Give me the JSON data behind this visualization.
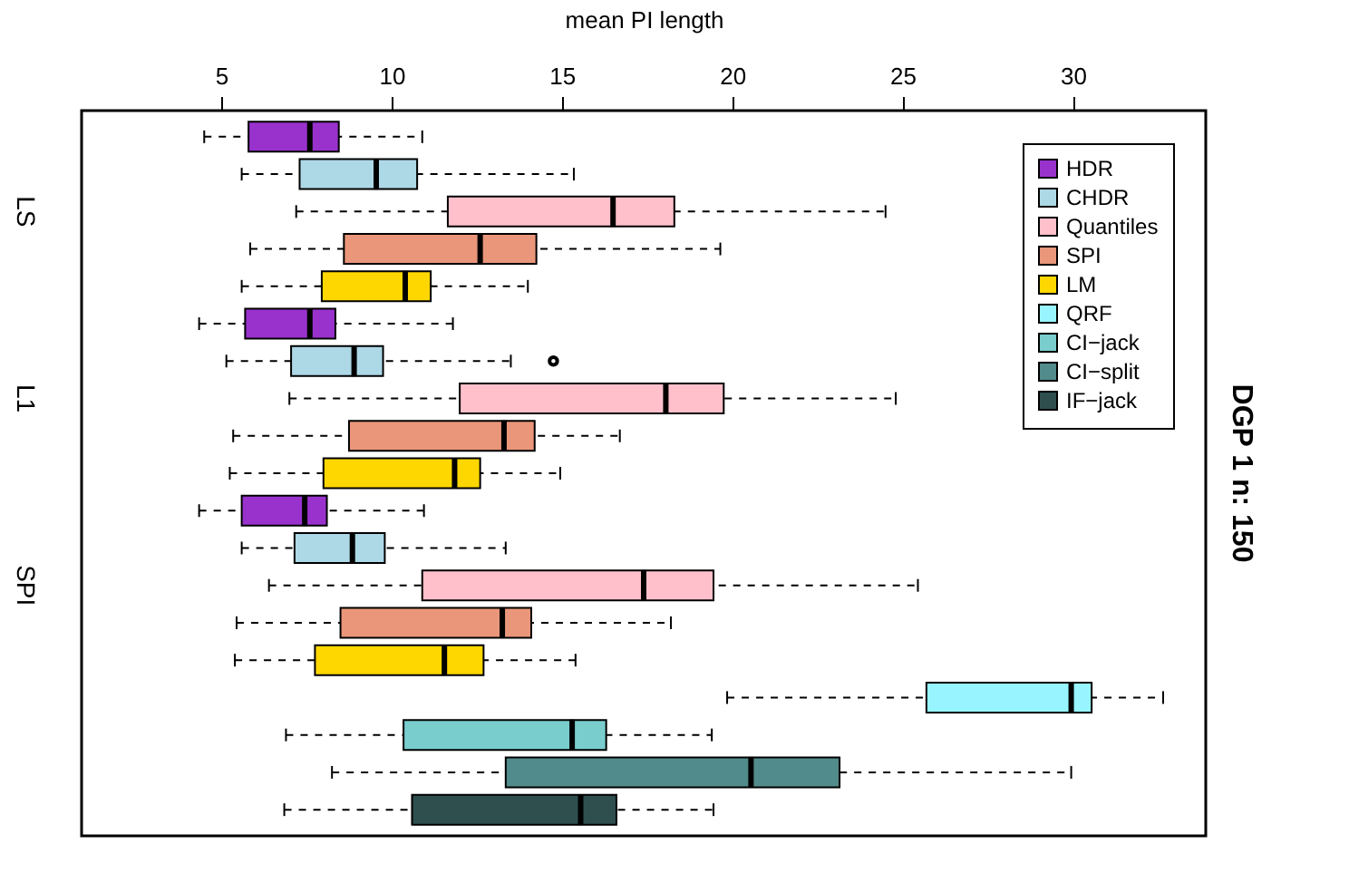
{
  "chart_data": {
    "type": "box",
    "orientation": "horizontal",
    "title": "DGP 1 n: 150",
    "xlabel": "mean PI length",
    "categories": [
      null,
      null,
      "LS",
      null,
      null,
      null,
      null,
      "L1",
      null,
      null,
      null,
      null,
      "SPI",
      null,
      null,
      null,
      null,
      null,
      null
    ],
    "xlim": [
      0.9,
      33.9
    ],
    "xticks": [
      5,
      10,
      15,
      20,
      25,
      30
    ],
    "grid": false,
    "legend": "top right",
    "series": [
      {
        "name": "HDR",
        "color": "#9932cc",
        "boxes": [
          {
            "low": 4.5,
            "q1": 5.8,
            "median": 7.6,
            "q3": 8.45,
            "high": 10.9
          },
          null,
          null,
          null,
          null,
          {
            "low": 4.35,
            "q1": 5.7,
            "median": 7.6,
            "q3": 8.35,
            "high": 11.8
          },
          null,
          null,
          null,
          null,
          {
            "low": 4.35,
            "q1": 5.6,
            "median": 7.45,
            "q3": 8.1,
            "high": 10.95
          },
          null,
          null,
          null,
          null,
          null,
          null,
          null,
          null
        ]
      },
      {
        "name": "CHDR",
        "color": "#add8e6",
        "boxes": [
          null,
          {
            "low": 5.6,
            "q1": 7.3,
            "median": 9.55,
            "q3": 10.75,
            "high": 15.35
          },
          null,
          null,
          null,
          null,
          {
            "low": 5.15,
            "q1": 7.05,
            "median": 8.9,
            "q3": 9.75,
            "high": 13.5,
            "outliers": [
              14.75
            ]
          },
          null,
          null,
          null,
          null,
          {
            "low": 5.6,
            "q1": 7.15,
            "median": 8.85,
            "q3": 9.8,
            "high": 13.35
          },
          null,
          null,
          null,
          null,
          null,
          null,
          null
        ]
      },
      {
        "name": "Quantiles",
        "color": "#ffc0cb",
        "boxes": [
          null,
          null,
          {
            "low": 7.2,
            "q1": 11.65,
            "median": 16.5,
            "q3": 18.3,
            "high": 24.5
          },
          null,
          null,
          null,
          null,
          {
            "low": 7.0,
            "q1": 12.0,
            "median": 18.05,
            "q3": 19.75,
            "high": 24.8
          },
          null,
          null,
          null,
          null,
          {
            "low": 6.4,
            "q1": 10.9,
            "median": 17.4,
            "q3": 19.45,
            "high": 25.45
          },
          null,
          null,
          null,
          null,
          null,
          null
        ]
      },
      {
        "name": "SPI",
        "color": "#e9967a",
        "boxes": [
          null,
          null,
          null,
          {
            "low": 5.85,
            "q1": 8.6,
            "median": 12.6,
            "q3": 14.25,
            "high": 19.65
          },
          null,
          null,
          null,
          null,
          {
            "low": 5.35,
            "q1": 8.75,
            "median": 13.3,
            "q3": 14.2,
            "high": 16.7
          },
          null,
          null,
          null,
          null,
          {
            "low": 5.45,
            "q1": 8.5,
            "median": 13.25,
            "q3": 14.1,
            "high": 18.2
          },
          null,
          null,
          null,
          null,
          null
        ]
      },
      {
        "name": "LM",
        "color": "#ffd700",
        "boxes": [
          null,
          null,
          null,
          null,
          {
            "low": 5.6,
            "q1": 7.95,
            "median": 10.4,
            "q3": 11.15,
            "high": 14.0
          },
          null,
          null,
          null,
          null,
          {
            "low": 5.25,
            "q1": 8.0,
            "median": 11.85,
            "q3": 12.6,
            "high": 14.95
          },
          null,
          null,
          null,
          null,
          {
            "low": 5.4,
            "q1": 7.75,
            "median": 11.55,
            "q3": 12.7,
            "high": 15.4
          },
          null,
          null,
          null,
          null
        ]
      },
      {
        "name": "QRF",
        "color": "#98f5ff",
        "boxes": [
          null,
          null,
          null,
          null,
          null,
          null,
          null,
          null,
          null,
          null,
          null,
          null,
          null,
          null,
          null,
          {
            "low": 19.85,
            "q1": 25.7,
            "median": 29.95,
            "q3": 30.55,
            "high": 32.65
          },
          null,
          null,
          null
        ]
      },
      {
        "name": "CI−jack",
        "color": "#79cdcd",
        "boxes": [
          null,
          null,
          null,
          null,
          null,
          null,
          null,
          null,
          null,
          null,
          null,
          null,
          null,
          null,
          null,
          null,
          {
            "low": 6.9,
            "q1": 10.35,
            "median": 15.3,
            "q3": 16.3,
            "high": 19.4
          },
          null,
          null
        ]
      },
      {
        "name": "CI−split",
        "color": "#528b8b",
        "boxes": [
          null,
          null,
          null,
          null,
          null,
          null,
          null,
          null,
          null,
          null,
          null,
          null,
          null,
          null,
          null,
          null,
          null,
          {
            "low": 8.25,
            "q1": 13.35,
            "median": 20.55,
            "q3": 23.15,
            "high": 29.95
          },
          null
        ]
      },
      {
        "name": "IF−jack",
        "color": "#2f4f4f",
        "boxes": [
          null,
          null,
          null,
          null,
          null,
          null,
          null,
          null,
          null,
          null,
          null,
          null,
          null,
          null,
          null,
          null,
          null,
          null,
          {
            "low": 6.85,
            "q1": 10.6,
            "median": 15.55,
            "q3": 16.6,
            "high": 19.45
          }
        ]
      }
    ]
  }
}
